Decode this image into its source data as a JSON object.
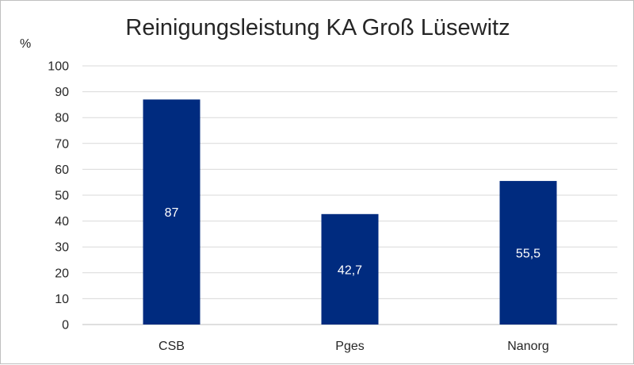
{
  "chart_data": {
    "type": "bar",
    "title": "Reinigungsleistung KA Groß Lüsewitz",
    "ylabel": "%",
    "xlabel": "",
    "categories": [
      "CSB",
      "Pges",
      "Nanorg"
    ],
    "values": [
      87,
      42.7,
      55.5
    ],
    "data_labels": [
      "87",
      "42,7",
      "55,5"
    ],
    "ylim": [
      0,
      100
    ],
    "yticks": [
      0,
      10,
      20,
      30,
      40,
      50,
      60,
      70,
      80,
      90,
      100
    ],
    "grid": true,
    "legend": "none",
    "bar_color": "#002b7f",
    "grid_color": "#d9d9d9"
  }
}
